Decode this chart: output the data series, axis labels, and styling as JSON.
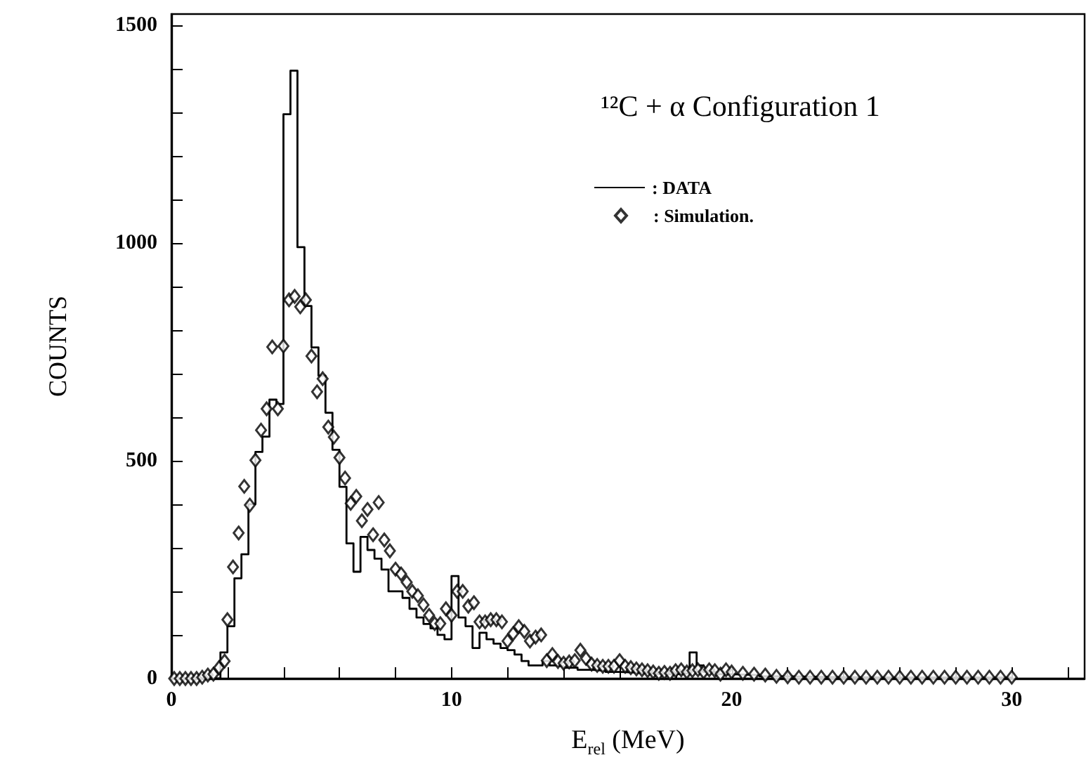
{
  "chart_data": {
    "type": "step",
    "title": "¹²C + α Configuration 1",
    "xlabel": "E$_{rel}$ (MeV)",
    "ylabel": "COUNTS",
    "xlim": [
      0,
      32.6
    ],
    "ylim": [
      0,
      1525
    ],
    "xticks": [
      0,
      {
        "value": 2,
        "label": null
      },
      {
        "value": 4,
        "label": null
      },
      {
        "value": 6,
        "label": null
      },
      {
        "value": 8,
        "label": null
      },
      10,
      {
        "value": 12,
        "label": null
      },
      {
        "value": 14,
        "label": null
      },
      {
        "value": 16,
        "label": null
      },
      {
        "value": 18,
        "label": null
      },
      20,
      {
        "value": 22,
        "label": null
      },
      {
        "value": 24,
        "label": null
      },
      {
        "value": 26,
        "label": null
      },
      {
        "value": 28,
        "label": null
      },
      30,
      {
        "value": 32,
        "label": null
      }
    ],
    "yticks": [
      0,
      {
        "value": 100,
        "label": null
      },
      {
        "value": 200,
        "label": null
      },
      {
        "value": 300,
        "label": null
      },
      {
        "value": 400,
        "label": null
      },
      500,
      {
        "value": 600,
        "label": null
      },
      {
        "value": 700,
        "label": null
      },
      {
        "value": 800,
        "label": null
      },
      {
        "value": 900,
        "label": null
      },
      1000,
      {
        "value": 1100,
        "label": null
      },
      {
        "value": 1200,
        "label": null
      },
      {
        "value": 1300,
        "label": null
      },
      {
        "value": 1400,
        "label": null
      },
      1500
    ],
    "legend": "top right",
    "series": [
      {
        "type": "step",
        "name": ": DATA",
        "color": "#000000",
        "marker": "none",
        "x": [
          0,
          0.25,
          0.5,
          0.75,
          1,
          1.25,
          1.5,
          1.75,
          2,
          2.25,
          2.5,
          2.75,
          3,
          3.25,
          3.5,
          3.75,
          4,
          4.25,
          4.5,
          4.75,
          5,
          5.25,
          5.5,
          5.75,
          6,
          6.25,
          6.5,
          6.75,
          7,
          7.25,
          7.5,
          7.75,
          8,
          8.25,
          8.5,
          8.75,
          9,
          9.25,
          9.5,
          9.75,
          10,
          10.25,
          10.5,
          10.75,
          11,
          11.25,
          11.5,
          11.75,
          12,
          12.25,
          12.5,
          12.75,
          13,
          13.25,
          13.5,
          13.75,
          14,
          14.5,
          15,
          15.5,
          16,
          16.5,
          17,
          17.5,
          18,
          18.5,
          18.75,
          19,
          19.5,
          20,
          21,
          22,
          24,
          26,
          28,
          30
        ],
        "values": [
          0,
          0,
          0,
          0,
          0,
          0,
          0,
          60,
          120,
          230,
          285,
          400,
          520,
          555,
          640,
          630,
          1295,
          1395,
          990,
          855,
          760,
          695,
          610,
          525,
          440,
          310,
          245,
          325,
          295,
          275,
          250,
          200,
          200,
          185,
          160,
          140,
          125,
          115,
          100,
          90,
          235,
          140,
          120,
          70,
          105,
          90,
          80,
          70,
          65,
          55,
          40,
          30,
          30,
          40,
          30,
          28,
          25,
          20,
          18,
          15,
          14,
          12,
          10,
          10,
          12,
          60,
          30,
          15,
          10,
          8,
          5,
          3,
          2,
          2,
          2,
          0
        ]
      },
      {
        "type": "scatter",
        "name": ": Simulation.",
        "color": "#000000",
        "marker": "diamond",
        "x": [
          0.1,
          0.3,
          0.5,
          0.7,
          0.9,
          1.1,
          1.3,
          1.5,
          1.7,
          1.9,
          2.0,
          2.2,
          2.4,
          2.6,
          2.8,
          3.0,
          3.2,
          3.4,
          3.6,
          3.8,
          4.0,
          4.2,
          4.4,
          4.6,
          4.8,
          5.0,
          5.2,
          5.4,
          5.6,
          5.8,
          6.0,
          6.2,
          6.4,
          6.6,
          6.8,
          7.0,
          7.2,
          7.4,
          7.6,
          7.8,
          8.0,
          8.2,
          8.4,
          8.6,
          8.8,
          9.0,
          9.2,
          9.4,
          9.6,
          9.8,
          10.0,
          10.2,
          10.4,
          10.6,
          10.8,
          11.0,
          11.2,
          11.4,
          11.6,
          11.8,
          12.0,
          12.2,
          12.4,
          12.6,
          12.8,
          13.0,
          13.2,
          13.4,
          13.6,
          13.8,
          14.0,
          14.2,
          14.4,
          14.6,
          14.8,
          15.0,
          15.2,
          15.4,
          15.6,
          15.8,
          16.0,
          16.2,
          16.4,
          16.6,
          16.8,
          17.0,
          17.2,
          17.4,
          17.6,
          17.8,
          18.0,
          18.2,
          18.4,
          18.6,
          18.8,
          19.0,
          19.2,
          19.4,
          19.6,
          19.8,
          20.0,
          20.4,
          20.8,
          21.2,
          21.6,
          22.0,
          22.4,
          22.8,
          23.2,
          23.6,
          24.0,
          24.4,
          24.8,
          25.2,
          25.6,
          26.0,
          26.4,
          26.8,
          27.2,
          27.6,
          28.0,
          28.4,
          28.8,
          29.2,
          29.6,
          30.0
        ],
        "values": [
          0,
          0,
          0,
          0,
          0,
          3,
          8,
          10,
          25,
          40,
          135,
          256,
          334,
          441,
          398,
          501,
          570,
          619,
          761,
          619,
          763,
          869,
          877,
          853,
          869,
          740,
          658,
          688,
          577,
          554,
          507,
          460,
          402,
          418,
          362,
          388,
          330,
          404,
          318,
          293,
          251,
          240,
          221,
          200,
          190,
          169,
          145,
          126,
          126,
          160,
          145,
          200,
          200,
          166,
          174,
          130,
          130,
          135,
          135,
          130,
          86,
          103,
          119,
          108,
          86,
          95,
          100,
          41,
          55,
          39,
          35,
          38,
          41,
          65,
          46,
          33,
          30,
          28,
          28,
          28,
          41,
          28,
          25,
          22,
          20,
          18,
          15,
          12,
          14,
          12,
          18,
          20,
          15,
          18,
          20,
          15,
          20,
          18,
          10,
          20,
          15,
          12,
          10,
          8,
          5,
          4,
          3,
          3,
          3,
          3,
          3,
          3,
          3,
          3,
          3,
          3,
          3,
          3,
          3,
          3,
          3,
          3,
          3,
          3,
          3,
          3
        ]
      }
    ]
  }
}
